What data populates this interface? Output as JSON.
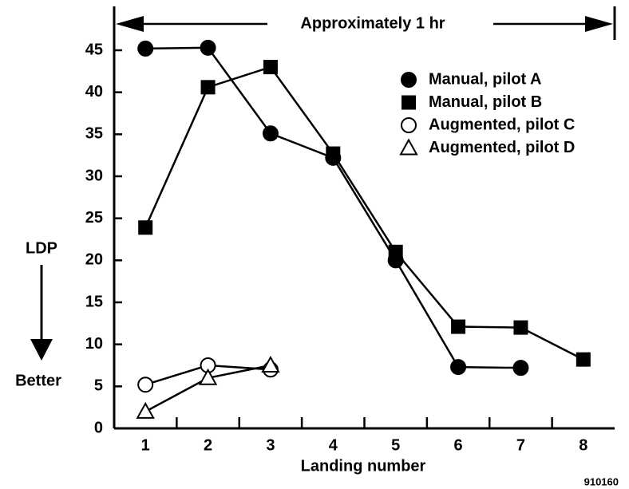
{
  "chart_data": {
    "type": "line",
    "title": "Approximately 1 hr",
    "y_label": "LDP",
    "y_note": "Better",
    "x_label": "Landing number",
    "figure_number": "910160",
    "x": [
      1,
      2,
      3,
      4,
      5,
      6,
      7,
      8
    ],
    "series": [
      {
        "name": "Manual, pilot A",
        "color": "#000000",
        "marker": "circle",
        "filled": true,
        "values": [
          45.2,
          45.3,
          35.1,
          32.2,
          20,
          7.3,
          7.2,
          null
        ]
      },
      {
        "name": "Manual, pilot B",
        "color": "#000000",
        "marker": "square",
        "filled": true,
        "values": [
          23.9,
          40.6,
          43,
          32.7,
          21,
          12.1,
          12,
          8.2
        ]
      },
      {
        "name": "Augmented, pilot C",
        "color": "#000000",
        "marker": "circle",
        "filled": false,
        "values": [
          5.2,
          7.5,
          7.0,
          null,
          null,
          null,
          null,
          null
        ]
      },
      {
        "name": "Augmented, pilot D",
        "color": "#000000",
        "marker": "triangle",
        "filled": false,
        "values": [
          2,
          6,
          7.5,
          null,
          null,
          null,
          null,
          null
        ]
      }
    ],
    "xlim": [
      0.5,
      8.5
    ],
    "xticks": [
      1,
      2,
      3,
      4,
      5,
      6,
      7,
      8
    ],
    "ylim": [
      0,
      45
    ],
    "yticks": [
      0,
      5,
      10,
      15,
      20,
      25,
      30,
      35,
      40,
      45
    ],
    "grid": false,
    "legend": "upper right"
  }
}
